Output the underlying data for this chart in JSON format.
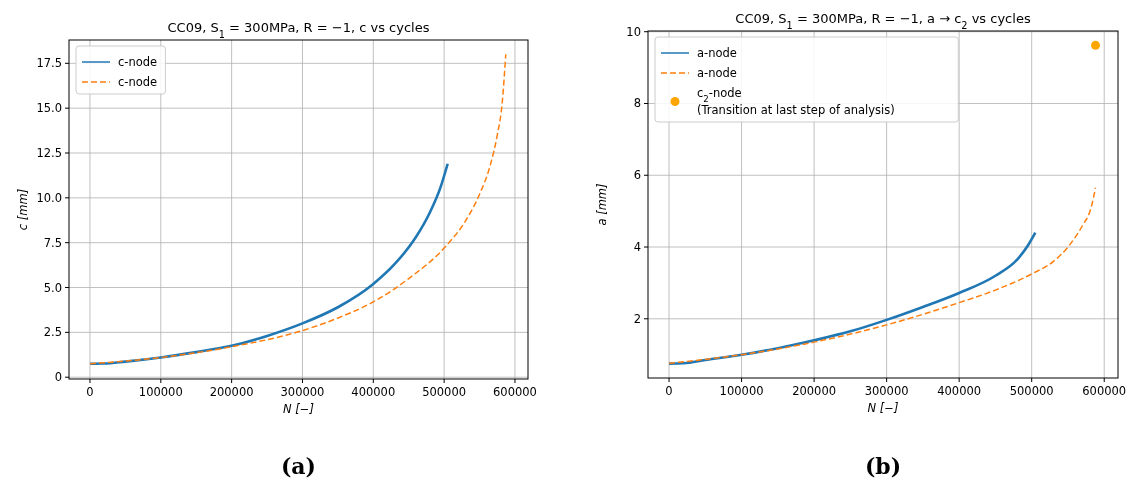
{
  "chart_data": [
    {
      "type": "line",
      "title": "CC09, S$_{1}$ = 300MPa, R = −1, c vs cycles",
      "xlabel": "N [−]",
      "ylabel": "c [mm]",
      "xlim": [
        -29600,
        618400
      ],
      "xticks": [
        0,
        100000,
        200000,
        300000,
        400000,
        500000,
        600000
      ],
      "ylim": [
        -0.1,
        18.8
      ],
      "yticks": [
        0.0,
        {
          "value": 2.5,
          "label": "2.5"
        },
        {
          "value": 5,
          "label": "5.0"
        },
        {
          "value": 7.5,
          "label": "7.5"
        },
        {
          "value": 10,
          "label": "10.0"
        },
        {
          "value": 12.5,
          "label": "12.5"
        },
        {
          "value": 15,
          "label": "15.0"
        },
        {
          "value": 17.5,
          "label": "17.5"
        }
      ],
      "grid": true,
      "legend": "top left",
      "annotations": [
        "(a)"
      ],
      "series": [
        {
          "name": "c-node",
          "color": "#1f77b4",
          "line_style": "solid",
          "x": [
            0,
            20000,
            50000,
            100000,
            150000,
            200000,
            250000,
            300000,
            350000,
            400000,
            430000,
            460000,
            480000,
            495000,
            505000
          ],
          "values": [
            0.75,
            0.76,
            0.87,
            1.1,
            1.4,
            1.75,
            2.3,
            3.0,
            3.9,
            5.2,
            6.3,
            7.8,
            9.2,
            10.6,
            11.9
          ]
        },
        {
          "name": "c-node",
          "color": "#ff7f0e",
          "line_style": "dashed",
          "x": [
            0,
            100000,
            200000,
            300000,
            350000,
            400000,
            450000,
            500000,
            530000,
            550000,
            565000,
            575000,
            582000,
            587000
          ],
          "values": [
            0.75,
            1.1,
            1.7,
            2.6,
            3.3,
            4.2,
            5.5,
            7.2,
            8.7,
            10.2,
            11.8,
            13.5,
            15.3,
            18.0
          ]
        }
      ]
    },
    {
      "type": "line",
      "title": "CC09, S$_{1}$ = 300MPa, R = −1, a → c$_{2}$ vs cycles",
      "xlabel": "N [−]",
      "ylabel": "a [mm]",
      "xlim": [
        -29000,
        619000
      ],
      "xticks": [
        0,
        100000,
        200000,
        300000,
        400000,
        500000,
        600000
      ],
      "ylim": [
        0.35,
        10.02
      ],
      "yticks": [
        2,
        4,
        6,
        8,
        10
      ],
      "grid": true,
      "legend": "top left",
      "annotations": [
        "(b)"
      ],
      "series": [
        {
          "name": "a-node",
          "color": "#1f77b4",
          "line_style": "solid",
          "x": [
            0,
            20000,
            50000,
            100000,
            150000,
            200000,
            250000,
            300000,
            350000,
            400000,
            450000,
            480000,
            495000,
            505000
          ],
          "values": [
            0.75,
            0.76,
            0.85,
            1.0,
            1.18,
            1.4,
            1.65,
            1.97,
            2.33,
            2.72,
            3.2,
            3.65,
            4.05,
            4.4
          ]
        },
        {
          "name": "a-node",
          "color": "#ff7f0e",
          "line_style": "dashed",
          "x": [
            0,
            100000,
            200000,
            300000,
            400000,
            450000,
            500000,
            530000,
            550000,
            570000,
            582000,
            588000
          ],
          "values": [
            0.76,
            1.0,
            1.35,
            1.83,
            2.45,
            2.8,
            3.25,
            3.6,
            4.0,
            4.6,
            5.1,
            5.65
          ]
        },
        {
          "name": "c$_{2}$-node\n(Transition at last step of analysis)",
          "type": "scatter",
          "marker": "circle",
          "color": "#ffa500",
          "x": [
            588000
          ],
          "values": [
            9.62
          ]
        }
      ]
    }
  ]
}
